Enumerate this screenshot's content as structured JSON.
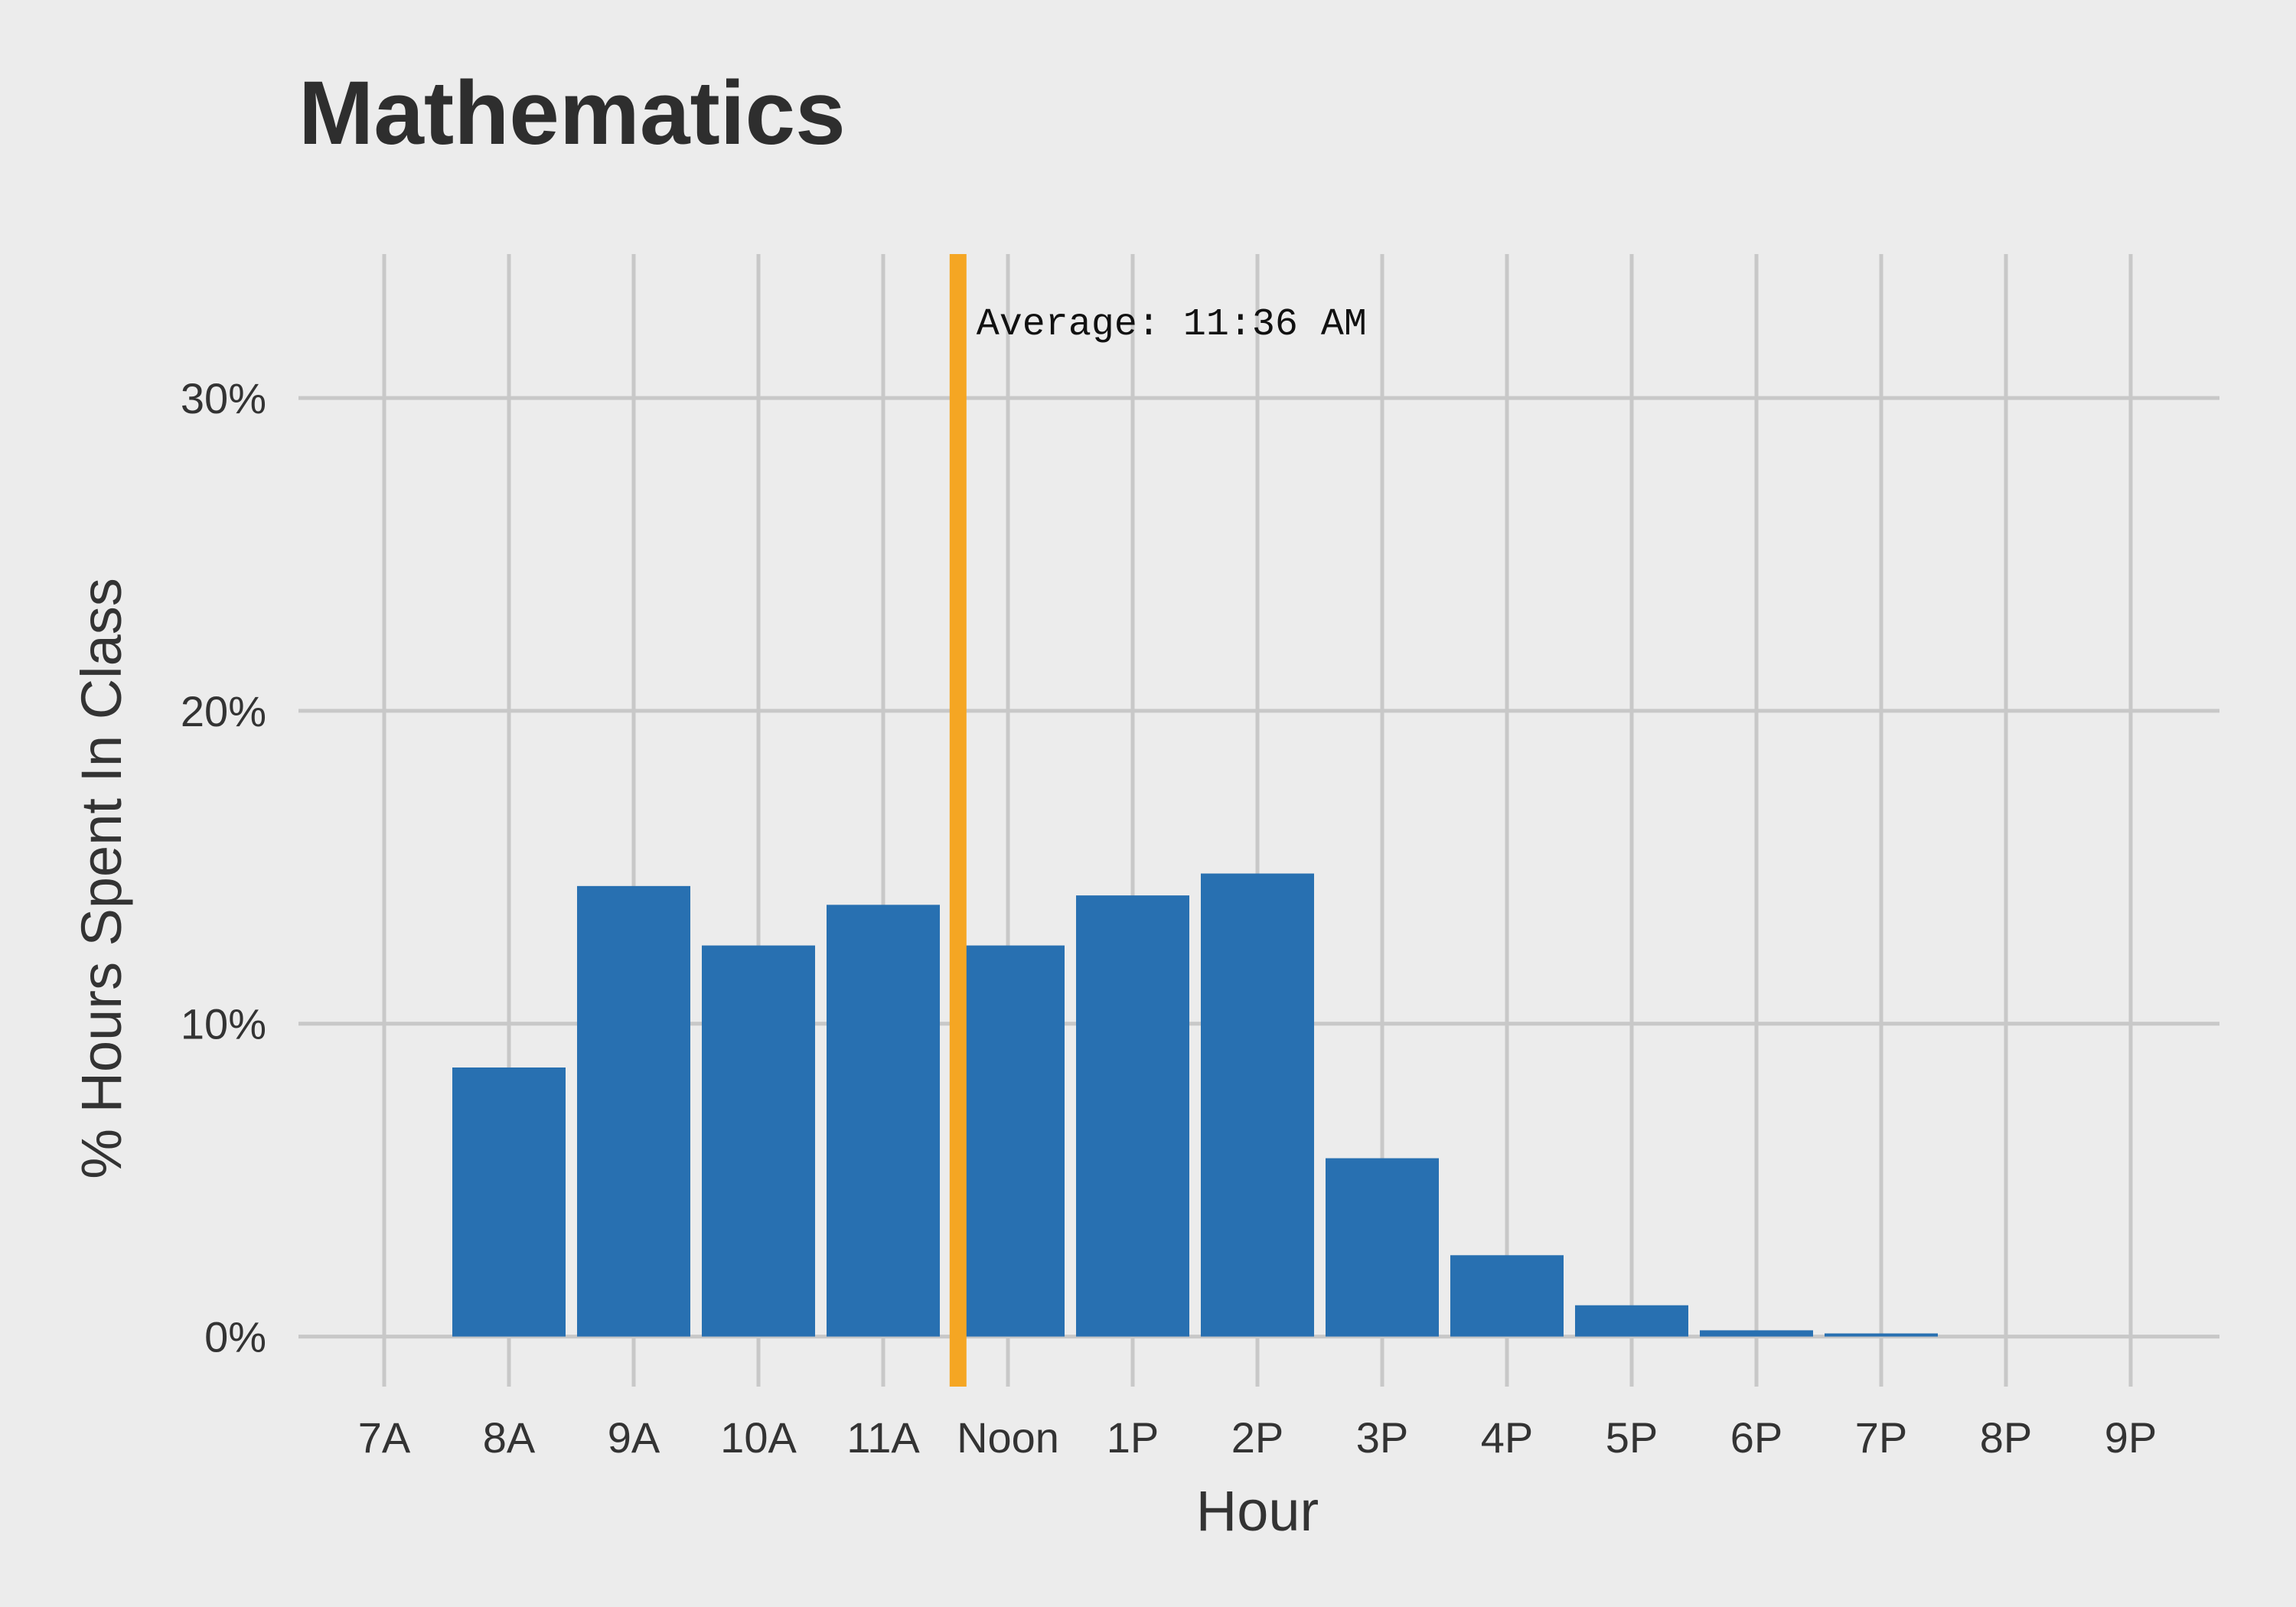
{
  "chart_data": {
    "type": "bar",
    "title": "Mathematics",
    "xlabel": "Hour",
    "ylabel": "% Hours Spent In Class",
    "categories": [
      "7A",
      "8A",
      "9A",
      "10A",
      "11A",
      "Noon",
      "1P",
      "2P",
      "3P",
      "4P",
      "5P",
      "6P",
      "7P",
      "8P",
      "9P"
    ],
    "values": [
      0,
      8.6,
      14.4,
      12.5,
      13.8,
      12.5,
      14.1,
      14.8,
      5.7,
      2.6,
      1.0,
      0.2,
      0.1,
      0,
      0
    ],
    "ylim": [
      -1.6,
      34.6
    ],
    "yticks": [
      0,
      10,
      20,
      30
    ],
    "ytick_labels": [
      "0%",
      "10%",
      "20%",
      "30%"
    ],
    "grid": true,
    "reference_line": {
      "x_hour": 11.6,
      "label": "Average: 11:36 AM",
      "color": "#f5a623"
    },
    "colors": {
      "bar": "#2870b1",
      "grid": "#c8c8c8",
      "background": "#ececec"
    }
  }
}
